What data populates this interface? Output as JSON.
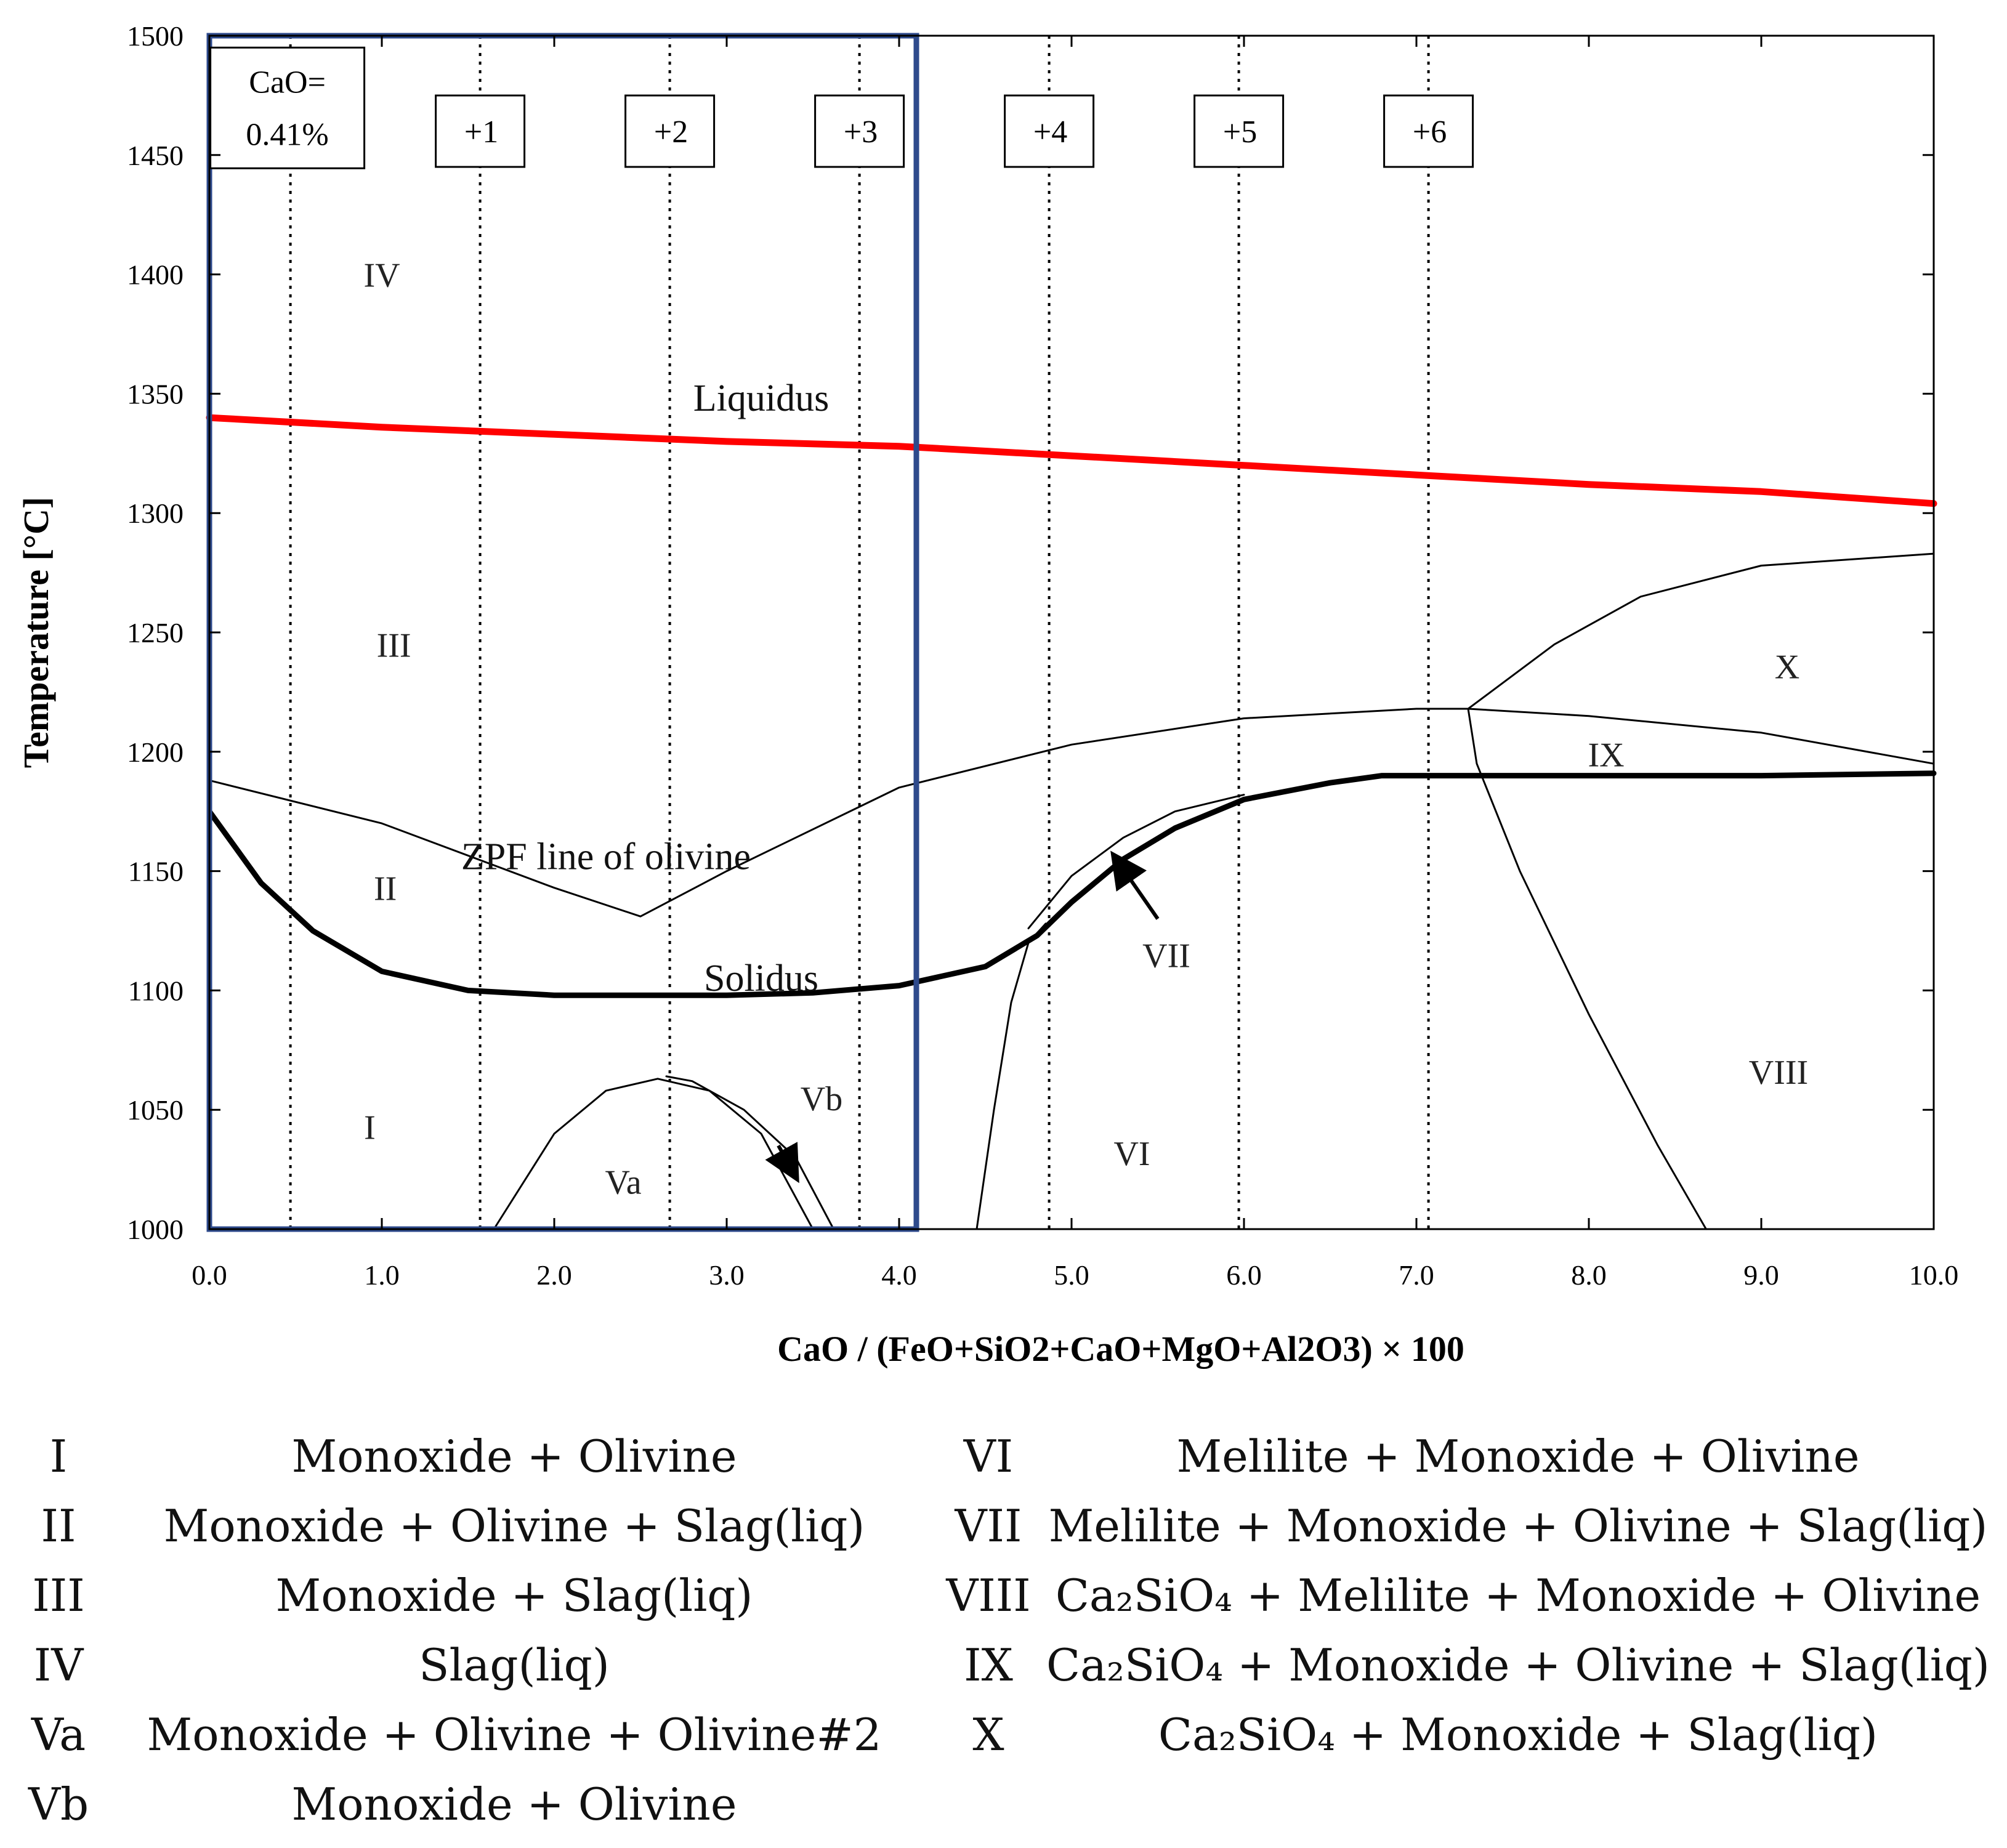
{
  "chart_data": {
    "type": "line",
    "title": "",
    "xlabel": "CaO / (FeO+SiO2+CaO+MgO+Al2O3) × 100",
    "ylabel": "Temperature [°C]",
    "xlim": [
      0.0,
      10.0
    ],
    "ylim": [
      1000,
      1500
    ],
    "x_ticks": [
      "0.0",
      "1.0",
      "2.0",
      "3.0",
      "4.0",
      "5.0",
      "6.0",
      "7.0",
      "8.0",
      "9.0",
      "10.0"
    ],
    "y_ticks": [
      "1000",
      "1050",
      "1100",
      "1150",
      "1200",
      "1250",
      "1300",
      "1350",
      "1400",
      "1450",
      "1500"
    ],
    "vertical_lines_x": [
      0.47,
      1.57,
      2.67,
      3.77,
      4.87,
      5.97,
      7.07
    ],
    "composition_boxes": [
      {
        "label_line1": "CaO=",
        "label_line2": "0.41%",
        "x": 0.47,
        "y": 1462
      },
      {
        "label": "+1",
        "x": 1.57,
        "y": 1460
      },
      {
        "label": "+2",
        "x": 2.67,
        "y": 1460
      },
      {
        "label": "+3",
        "x": 3.77,
        "y": 1460
      },
      {
        "label": "+4",
        "x": 4.87,
        "y": 1460
      },
      {
        "label": "+5",
        "x": 5.97,
        "y": 1460
      },
      {
        "label": "+6",
        "x": 7.07,
        "y": 1460
      }
    ],
    "highlight_box": {
      "x_range": [
        0.0,
        4.1
      ],
      "y_range": [
        1000,
        1500
      ],
      "color": "#2E4A8C"
    },
    "series": [
      {
        "name": "Liquidus",
        "color": "#ff0000",
        "x": [
          0.0,
          1.0,
          2.0,
          3.0,
          4.0,
          5.0,
          6.0,
          7.0,
          8.0,
          9.0,
          10.0
        ],
        "y": [
          1340,
          1336,
          1333,
          1330,
          1328,
          1324,
          1320,
          1316,
          1312,
          1309,
          1304
        ]
      },
      {
        "name": "Solidus",
        "color": "#000000",
        "x": [
          0.0,
          0.3,
          0.6,
          1.0,
          1.5,
          2.0,
          2.5,
          3.0,
          3.5,
          4.0,
          4.5,
          4.8,
          5.0,
          5.3,
          5.6,
          6.0,
          6.5,
          6.8,
          7.2,
          8.0,
          9.0,
          10.0
        ],
        "y": [
          1175,
          1145,
          1125,
          1108,
          1100,
          1098,
          1098,
          1098,
          1099,
          1102,
          1110,
          1123,
          1137,
          1155,
          1168,
          1180,
          1187,
          1190,
          1190,
          1190,
          1190,
          1191
        ]
      },
      {
        "name": "ZPF line of olivine",
        "color": "#000000",
        "x": [
          0.0,
          1.0,
          2.0,
          2.5,
          3.0,
          4.0,
          5.0,
          6.0,
          7.0,
          7.3,
          8.0,
          9.0,
          10.0
        ],
        "y": [
          1188,
          1170,
          1143,
          1131,
          1150,
          1185,
          1203,
          1214,
          1218,
          1218,
          1215,
          1208,
          1195
        ]
      },
      {
        "name": "Va boundary",
        "color": "#000000",
        "x": [
          1.65,
          2.0,
          2.3,
          2.6,
          2.9,
          3.2,
          3.5
        ],
        "y": [
          1000,
          1040,
          1058,
          1063,
          1058,
          1040,
          1000
        ]
      },
      {
        "name": "Vb boundary",
        "color": "#000000",
        "x": [
          2.65,
          2.8,
          3.1,
          3.4,
          3.62
        ],
        "y": [
          1064,
          1062,
          1050,
          1030,
          1000
        ]
      },
      {
        "name": "VI boundary",
        "color": "#000000",
        "x": [
          4.45,
          4.55,
          4.65,
          4.75,
          4.85
        ],
        "y": [
          1000,
          1050,
          1095,
          1120,
          1128
        ]
      },
      {
        "name": "VII upper",
        "color": "#000000",
        "x": [
          4.75,
          5.0,
          5.3,
          5.6,
          6.0
        ],
        "y": [
          1126,
          1148,
          1164,
          1175,
          1182
        ]
      },
      {
        "name": "IX/VIII boundary",
        "color": "#000000",
        "x": [
          7.3,
          7.35,
          7.6,
          8.0,
          8.4,
          8.68
        ],
        "y": [
          1218,
          1195,
          1150,
          1090,
          1035,
          1000
        ]
      },
      {
        "name": "X boundary",
        "color": "#000000",
        "x": [
          7.3,
          7.8,
          8.3,
          9.0,
          10.0
        ],
        "y": [
          1218,
          1245,
          1265,
          1278,
          1283
        ]
      }
    ],
    "region_labels": [
      {
        "label": "IV",
        "x": 1.0,
        "y": 1400
      },
      {
        "label": "III",
        "x": 1.07,
        "y": 1245
      },
      {
        "label": "II",
        "x": 1.02,
        "y": 1143
      },
      {
        "label": "I",
        "x": 0.93,
        "y": 1043
      },
      {
        "label": "Va",
        "x": 2.4,
        "y": 1020
      },
      {
        "label": "Vb",
        "x": 3.55,
        "y": 1055
      },
      {
        "label": "VI",
        "x": 5.35,
        "y": 1032
      },
      {
        "label": "VII",
        "x": 5.55,
        "y": 1115
      },
      {
        "label": "VIII",
        "x": 9.1,
        "y": 1066
      },
      {
        "label": "IX",
        "x": 8.1,
        "y": 1199
      },
      {
        "label": "X",
        "x": 9.15,
        "y": 1236
      }
    ],
    "curve_labels": [
      {
        "label": "Liquidus",
        "x": 3.2,
        "y": 1348,
        "color": "#ff0000"
      },
      {
        "label": "ZPF line of olivine",
        "x": 2.3,
        "y": 1156,
        "color": "#111111"
      },
      {
        "label": "Solidus",
        "x": 3.2,
        "y": 1105,
        "color": "#111111"
      }
    ],
    "arrows": [
      {
        "from": [
          3.3,
          1035
        ],
        "to": [
          3.4,
          1022
        ]
      },
      {
        "from": [
          5.5,
          1130
        ],
        "to": [
          5.25,
          1156
        ]
      }
    ]
  },
  "legend": {
    "left": [
      {
        "roman": "I",
        "desc": "Monoxide + Olivine"
      },
      {
        "roman": "II",
        "desc": "Monoxide + Olivine + Slag(liq)"
      },
      {
        "roman": "III",
        "desc": "Monoxide + Slag(liq)"
      },
      {
        "roman": "IV",
        "desc": "Slag(liq)"
      },
      {
        "roman": "Va",
        "desc": "Monoxide + Olivine + Olivine#2"
      },
      {
        "roman": "Vb",
        "desc": "Monoxide + Olivine"
      }
    ],
    "right": [
      {
        "roman": "VI",
        "desc": "Melilite + Monoxide + Olivine"
      },
      {
        "roman": "VII",
        "desc": "Melilite + Monoxide + Olivine + Slag(liq)"
      },
      {
        "roman": "VIII",
        "desc": "Ca₂SiO₄ + Melilite + Monoxide + Olivine"
      },
      {
        "roman": "IX",
        "desc": "Ca₂SiO₄ + Monoxide + Olivine + Slag(liq)"
      },
      {
        "roman": "X",
        "desc": "Ca₂SiO₄ + Monoxide + Slag(liq)"
      }
    ]
  }
}
